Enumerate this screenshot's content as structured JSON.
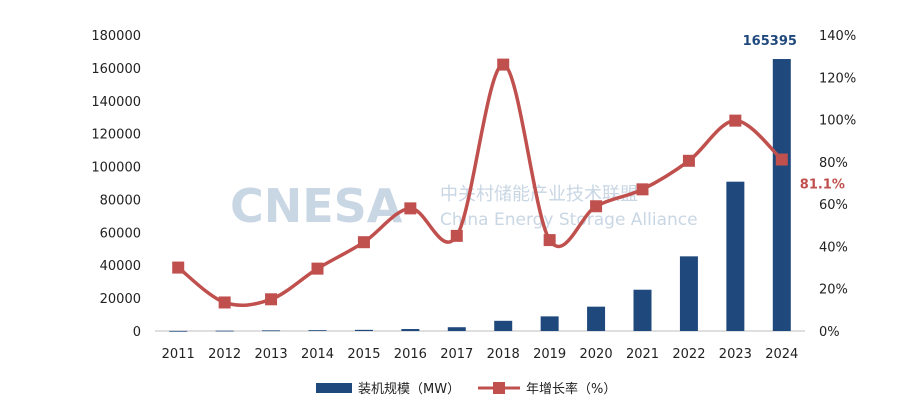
{
  "watermark": {
    "logo": "CNESA",
    "cn": "中关村储能产业技术联盟",
    "en": "China Energy Storage Alliance"
  },
  "colors": {
    "bar": "#1f497d",
    "line": "#c0504d",
    "marker": "#c0504d"
  },
  "chart_data": {
    "type": "bar",
    "categories": [
      "2011",
      "2012",
      "2013",
      "2014",
      "2015",
      "2016",
      "2017",
      "2018",
      "2019",
      "2020",
      "2021",
      "2022",
      "2023",
      "2024"
    ],
    "series": [
      {
        "name": "装机规模（MW）",
        "type": "bar",
        "axis": "left",
        "values": [
          70,
          200,
          400,
          500,
          700,
          1200,
          2300,
          6200,
          8900,
          14800,
          25100,
          45400,
          90800,
          165395
        ]
      },
      {
        "name": "年增长率（%）",
        "type": "line",
        "axis": "right",
        "values": [
          30,
          13.5,
          15,
          29.5,
          42,
          58,
          45,
          126,
          43,
          59,
          67,
          80.5,
          99.5,
          81.1
        ]
      }
    ],
    "y_left": {
      "ylim": [
        0,
        180000
      ],
      "ticks": [
        "0",
        "20000",
        "40000",
        "60000",
        "80000",
        "100000",
        "120000",
        "140000",
        "160000",
        "180000"
      ]
    },
    "y_right": {
      "ylim": [
        0,
        140
      ],
      "ticks": [
        "0%",
        "20%",
        "40%",
        "60%",
        "80%",
        "100%",
        "120%",
        "140%"
      ]
    },
    "data_labels": [
      {
        "series": 0,
        "index": 13,
        "text": "165395"
      },
      {
        "series": 1,
        "index": 13,
        "text": "81.1%"
      }
    ],
    "legend_position": "bottom",
    "grid": false
  }
}
